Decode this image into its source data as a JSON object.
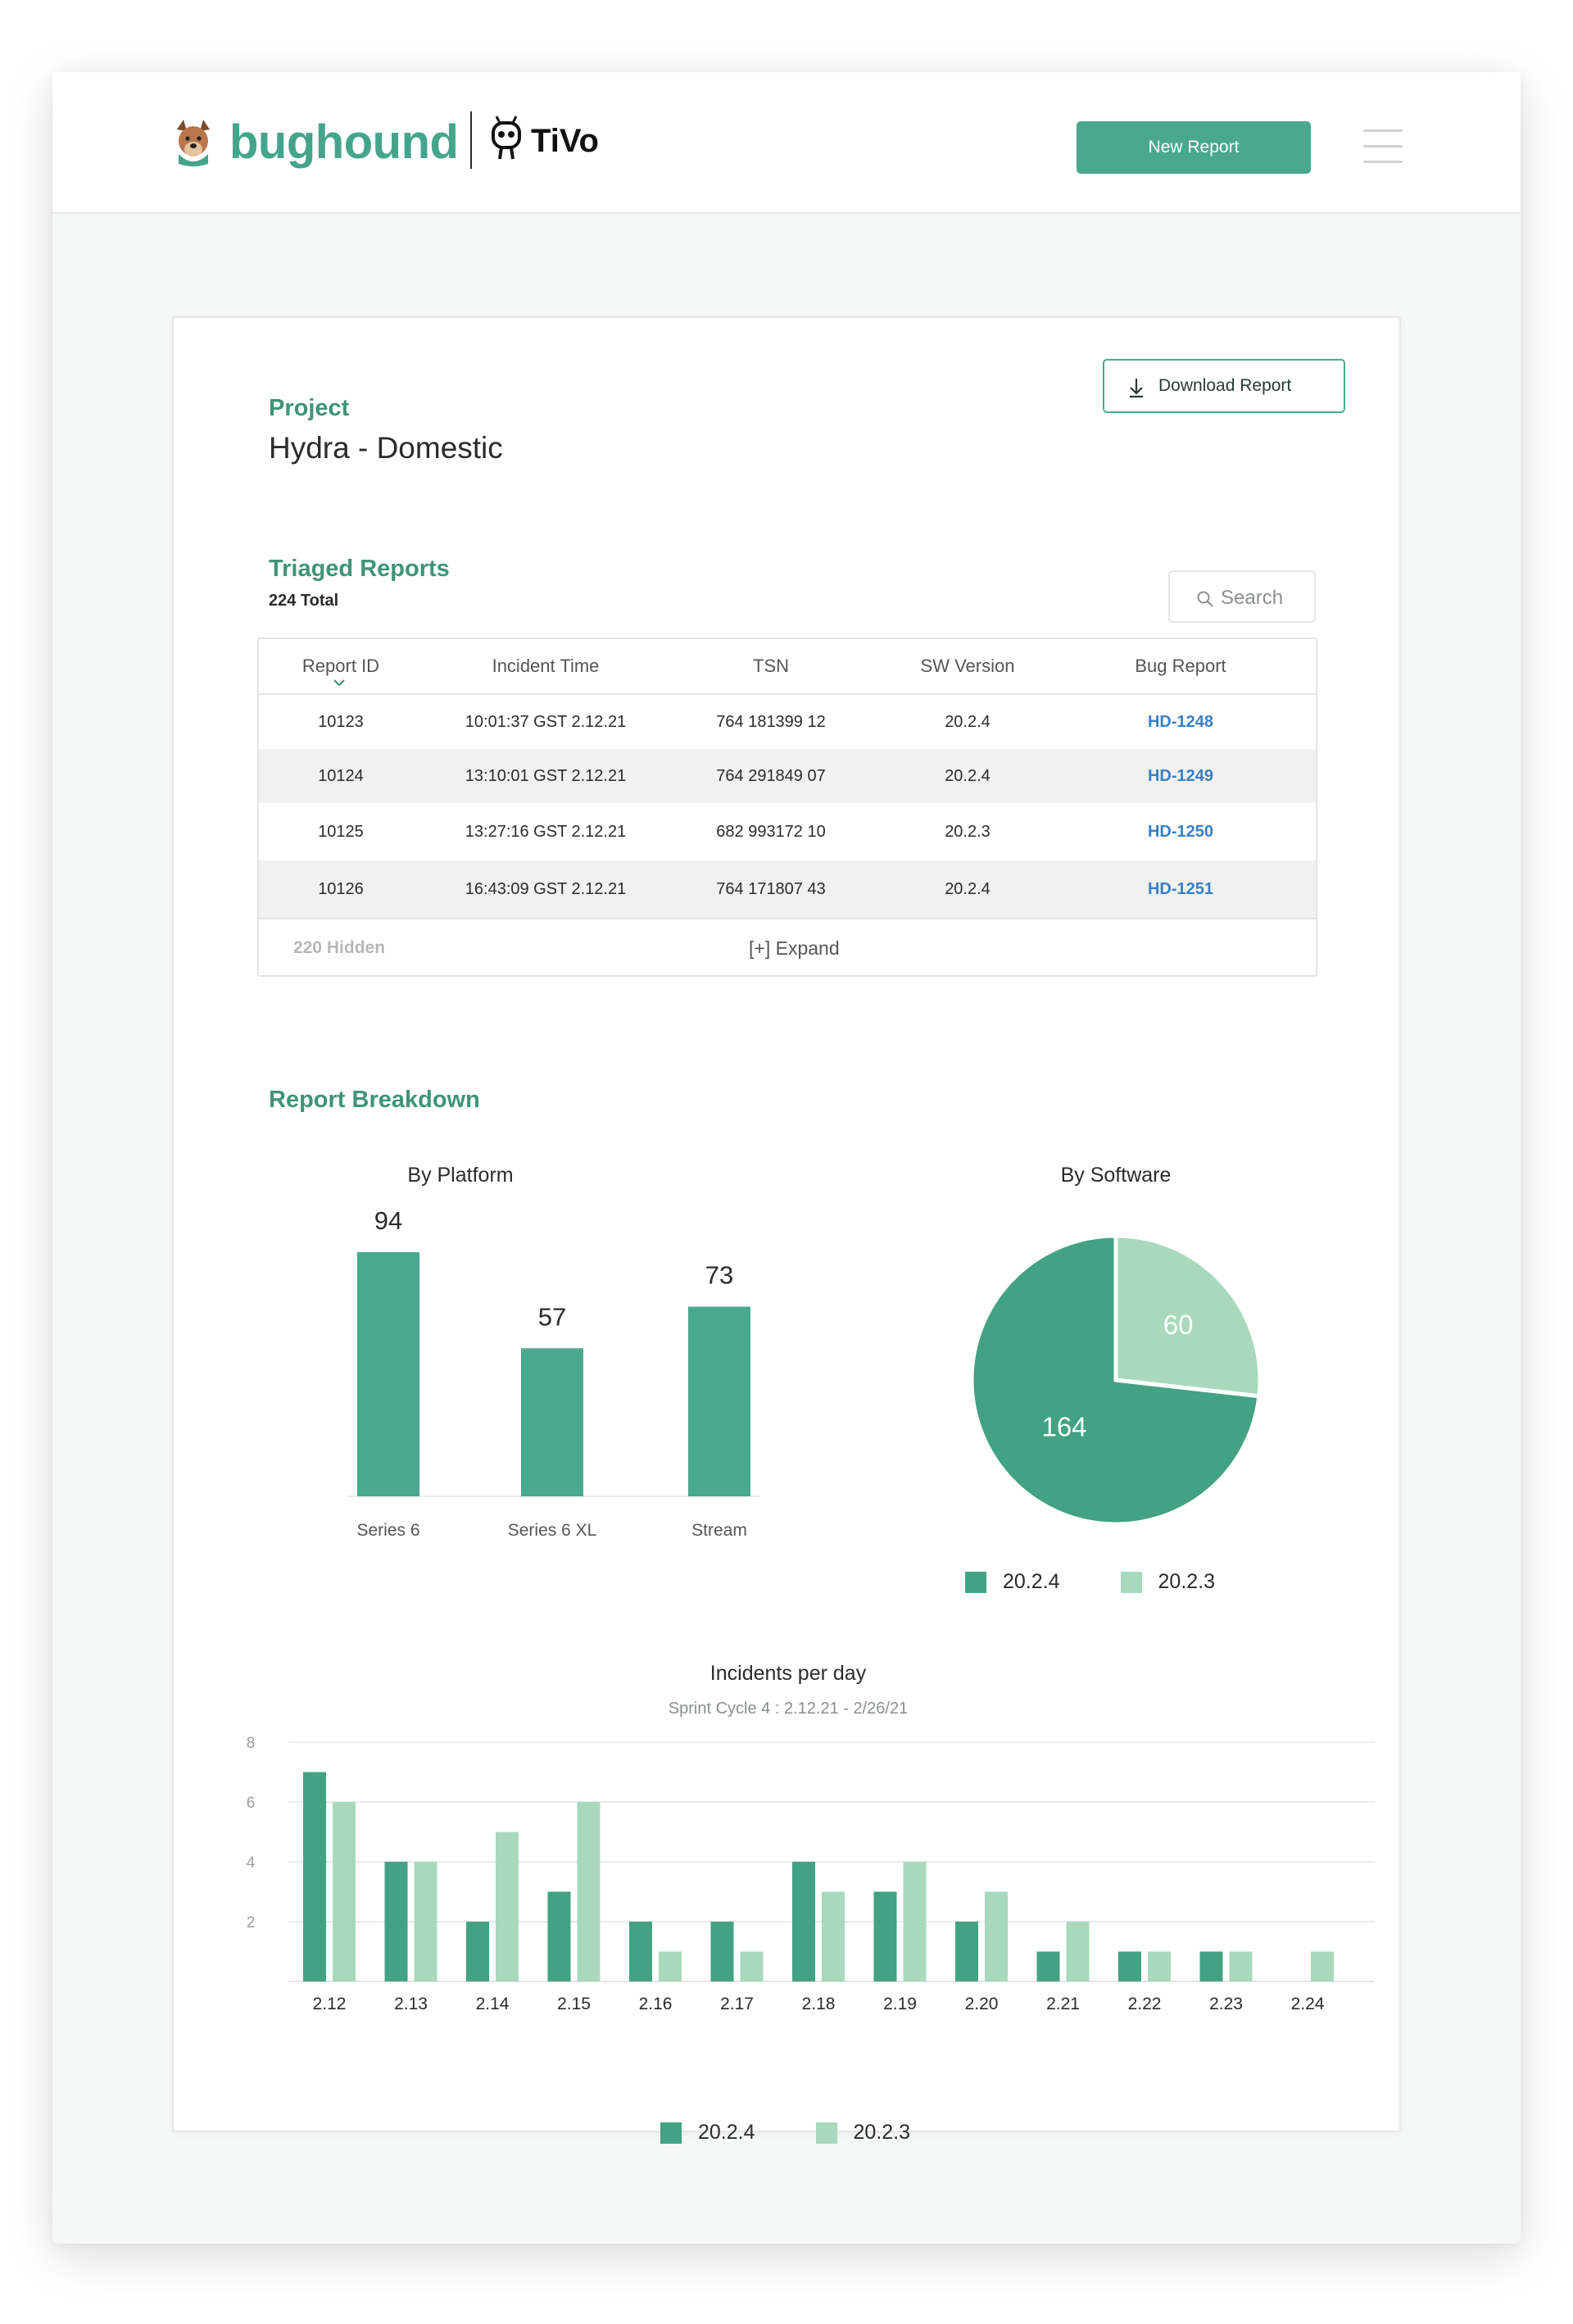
{
  "header": {
    "brand": "bughound",
    "partner": "TiVo",
    "new_report_label": "New Report",
    "accent_color": "#4aa98c"
  },
  "project": {
    "download_label": "Download Report",
    "label": "Project",
    "name": "Hydra - Domestic"
  },
  "triaged": {
    "title": "Triaged Reports",
    "total": "224 Total",
    "search_placeholder": "Search",
    "columns": [
      "Report ID",
      "Incident Time",
      "TSN",
      "SW Version",
      "Bug Report"
    ],
    "rows": [
      {
        "id": "10123",
        "time": "10:01:37 GST 2.12.21",
        "tsn": "764 181399 12",
        "sw": "20.2.4",
        "bug": "HD-1248"
      },
      {
        "id": "10124",
        "time": "13:10:01 GST 2.12.21",
        "tsn": "764 291849 07",
        "sw": "20.2.4",
        "bug": "HD-1249"
      },
      {
        "id": "10125",
        "time": "13:27:16 GST 2.12.21",
        "tsn": "682 993172 10",
        "sw": "20.2.3",
        "bug": "HD-1250"
      },
      {
        "id": "10126",
        "time": "16:43:09 GST 2.12.21",
        "tsn": "764 171807 43",
        "sw": "20.2.4",
        "bug": "HD-1251"
      }
    ],
    "hidden_label": "220 Hidden",
    "expand_label": "[+] Expand"
  },
  "breakdown": {
    "title": "Report Breakdown"
  },
  "chart_data": [
    {
      "type": "bar",
      "title": "By Platform",
      "categories": [
        "Series 6",
        "Series 6 XL",
        "Stream"
      ],
      "values": [
        94,
        57,
        73
      ],
      "ylim": [
        0,
        94
      ],
      "color": "#4aa98c"
    },
    {
      "type": "pie",
      "title": "By Software",
      "labels": [
        "20.2.4",
        "20.2.3"
      ],
      "values": [
        164,
        60
      ],
      "colors": [
        "#42a283",
        "#a8d9bc"
      ],
      "legend": "bottom"
    },
    {
      "type": "bar",
      "title": "Incidents per day",
      "subtitle": "Sprint Cycle 4 : 2.12.21 - 2/26/21",
      "categories": [
        "2.12",
        "2.13",
        "2.14",
        "2.15",
        "2.16",
        "2.17",
        "2.18",
        "2.19",
        "2.20",
        "2.21",
        "2.22",
        "2.23",
        "2.24"
      ],
      "series": [
        {
          "name": "20.2.4",
          "color": "#42a283",
          "values": [
            7,
            4,
            2,
            3,
            2,
            2,
            4,
            3,
            2,
            1,
            1,
            1,
            0
          ]
        },
        {
          "name": "20.2.3",
          "color": "#a8d9bc",
          "values": [
            6,
            4,
            5,
            6,
            1,
            1,
            3,
            4,
            3,
            2,
            1,
            1,
            1
          ]
        }
      ],
      "yticks": [
        2,
        4,
        6,
        8
      ],
      "ylim": [
        0,
        8
      ],
      "grid": true,
      "legend": "bottom"
    }
  ]
}
